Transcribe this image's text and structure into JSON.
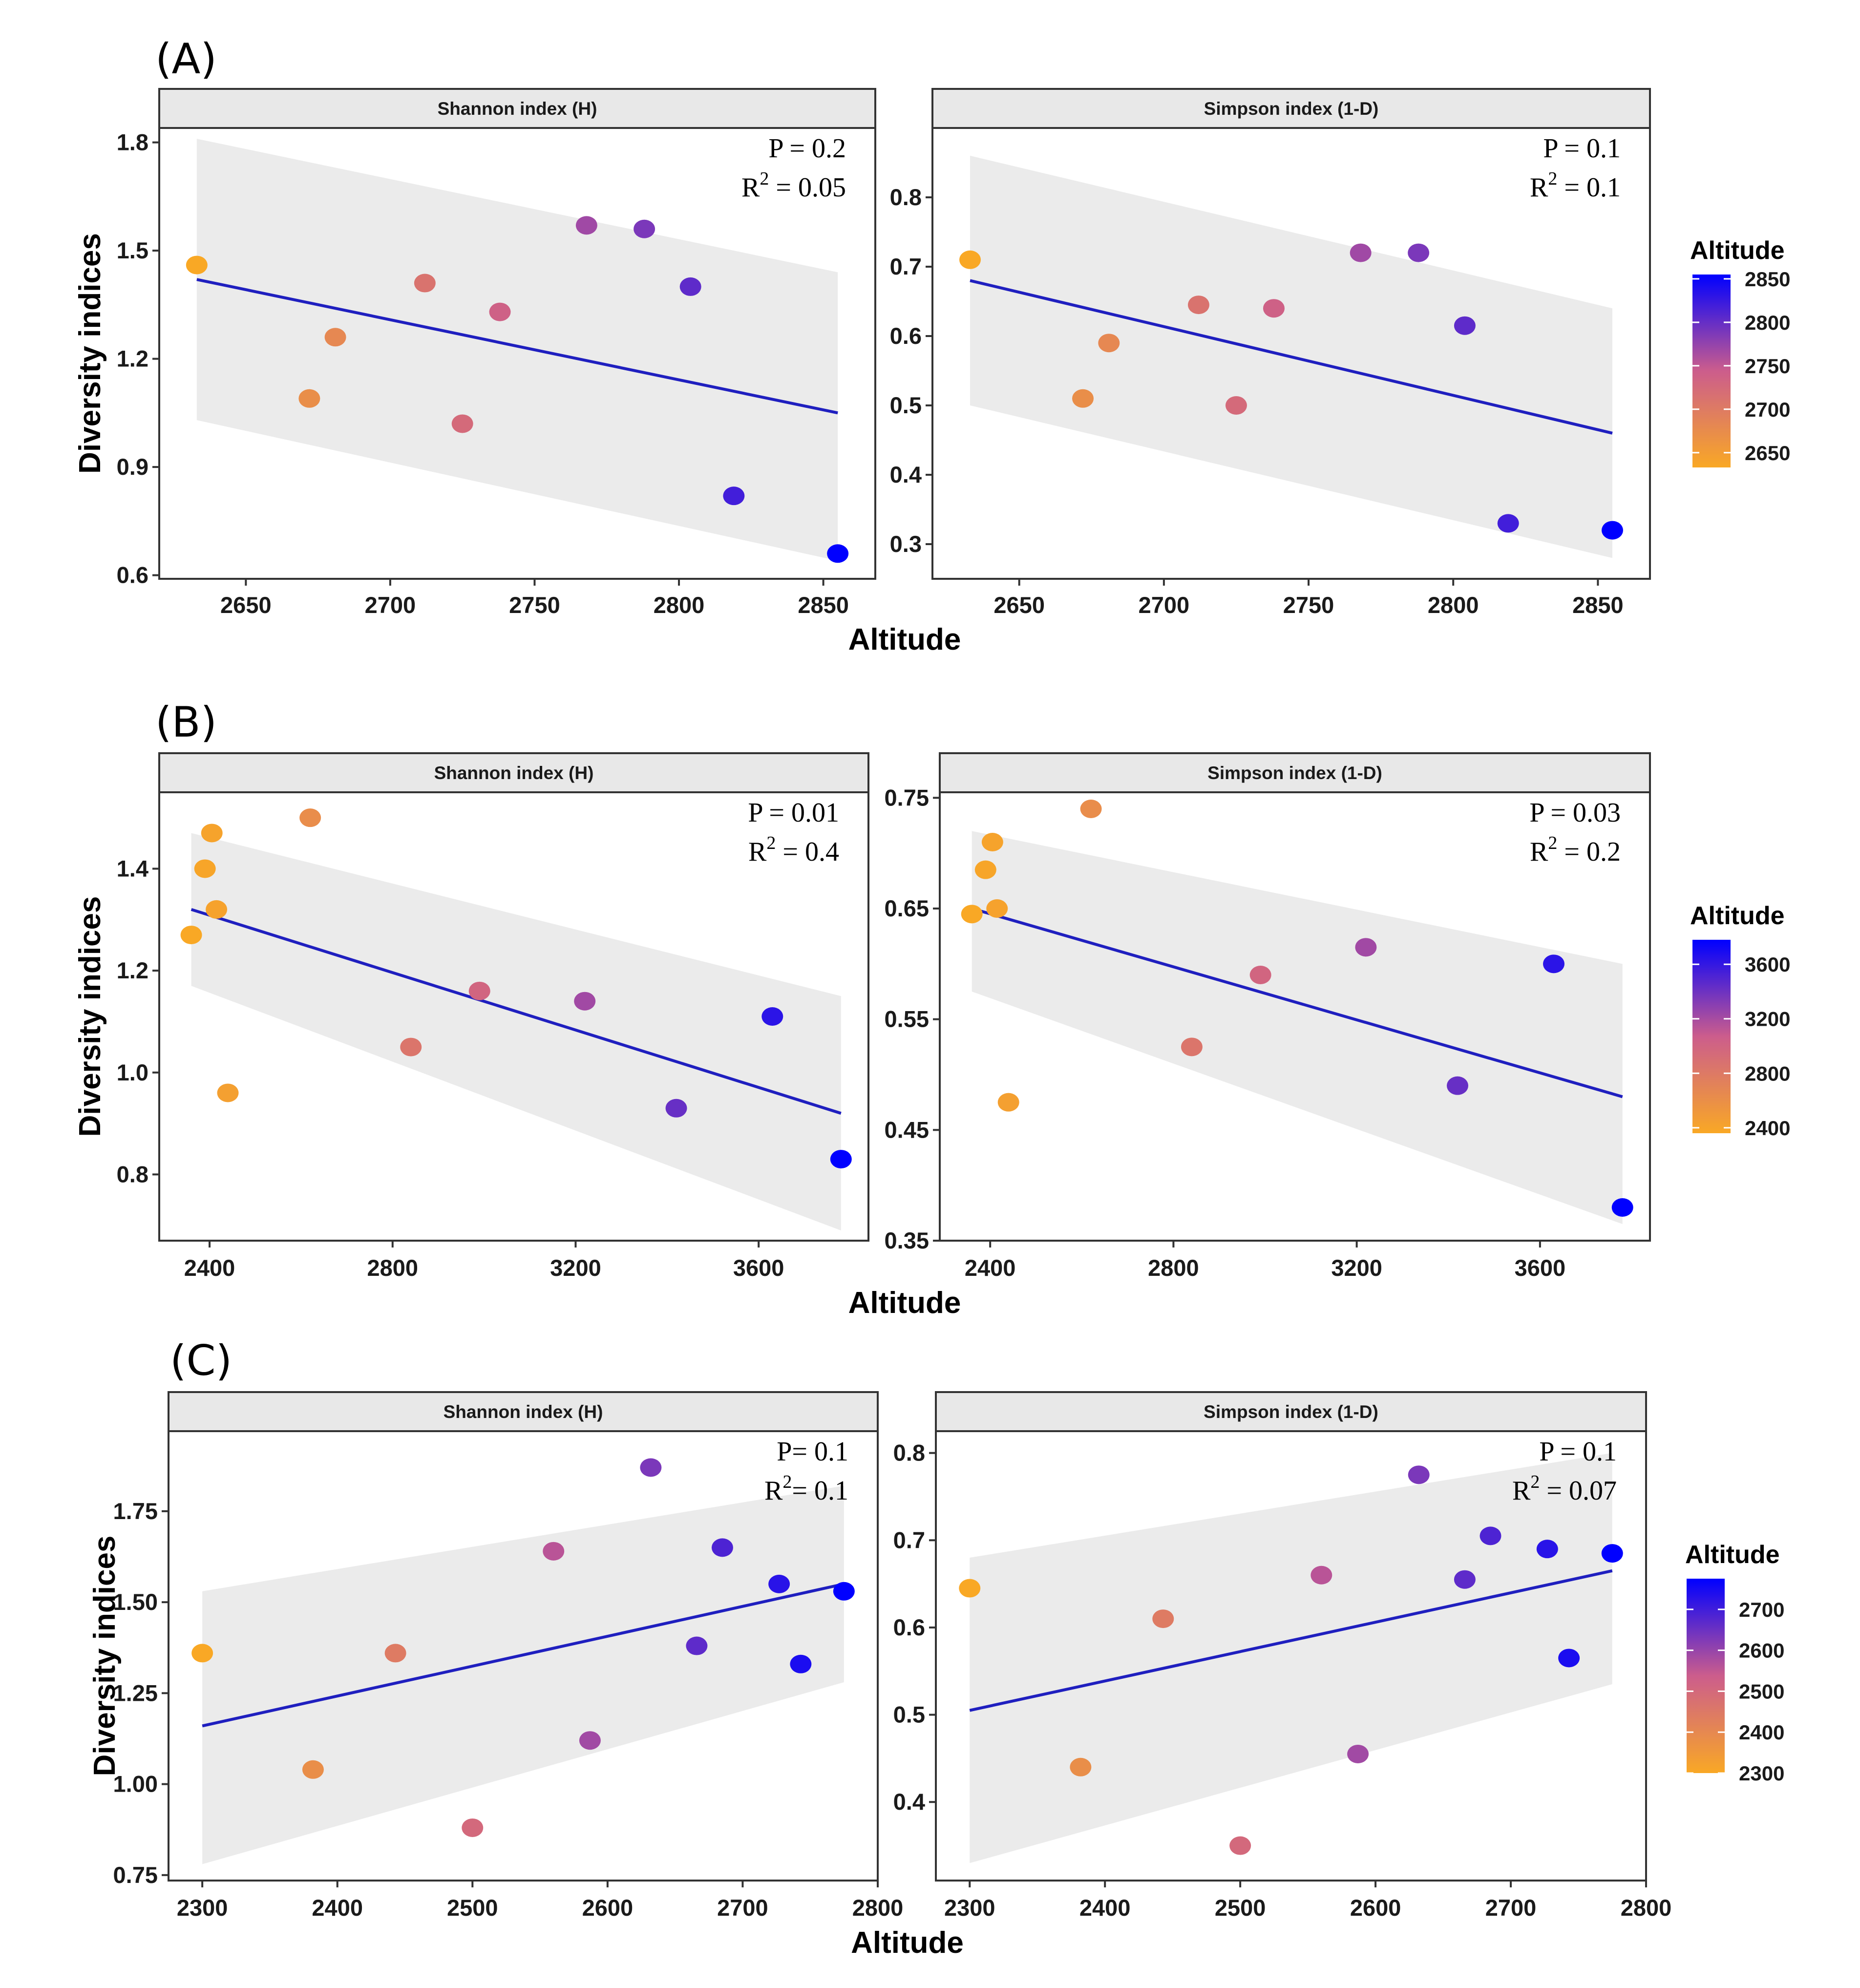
{
  "figure": {
    "xlabel": "Altitude",
    "ylabel": "Diversity indices"
  },
  "chart_data": [
    {
      "type": "scatter",
      "panel": "(A)",
      "legend": {
        "title": "Altitude",
        "range": [
          2633,
          2855
        ],
        "ticks": [
          "2650",
          "2700",
          "2750",
          "2800",
          "2850"
        ]
      },
      "facets": [
        {
          "title": "Shannon index (H)",
          "xlim": [
            2620,
            2868
          ],
          "ylim": [
            0.59,
            1.84
          ],
          "xticks": [
            "2650",
            "2700",
            "2750",
            "2800",
            "2850"
          ],
          "yticks": [
            "0.6",
            "0.9",
            "1.2",
            "1.5",
            "1.8"
          ],
          "stat_p": "P = 0.2",
          "stat_r2_prefix": "R",
          "stat_r2_value": " = 0.05",
          "x": [
            2633,
            2672,
            2681,
            2712,
            2725,
            2738,
            2768,
            2788,
            2804,
            2819,
            2855
          ],
          "y": [
            1.46,
            1.09,
            1.26,
            1.41,
            1.02,
            1.33,
            1.57,
            1.56,
            1.4,
            0.82,
            0.66
          ],
          "fit": {
            "x": [
              2633,
              2855
            ],
            "y": [
              1.42,
              1.05
            ]
          },
          "ci_upper": [
            1.81,
            1.44
          ],
          "ci_lower": [
            1.03,
            0.64
          ]
        },
        {
          "title": "Simpson index (1-D)",
          "xlim": [
            2620,
            2868
          ],
          "ylim": [
            0.25,
            0.9
          ],
          "xticks": [
            "2650",
            "2700",
            "2750",
            "2800",
            "2850"
          ],
          "yticks": [
            "0.3",
            "0.4",
            "0.5",
            "0.6",
            "0.7",
            "0.8"
          ],
          "stat_p": "P = 0.1",
          "stat_r2_prefix": "R",
          "stat_r2_value": " = 0.1",
          "x": [
            2633,
            2672,
            2681,
            2712,
            2725,
            2738,
            2768,
            2788,
            2804,
            2819,
            2855
          ],
          "y": [
            0.71,
            0.51,
            0.59,
            0.645,
            0.5,
            0.64,
            0.72,
            0.72,
            0.615,
            0.33,
            0.32
          ],
          "fit": {
            "x": [
              2633,
              2855
            ],
            "y": [
              0.68,
              0.46
            ]
          },
          "ci_upper": [
            0.86,
            0.64
          ],
          "ci_lower": [
            0.5,
            0.28
          ]
        }
      ]
    },
    {
      "type": "scatter",
      "panel": "(B)",
      "legend": {
        "title": "Altitude",
        "range": [
          2360,
          3780
        ],
        "ticks": [
          "2400",
          "2800",
          "3200",
          "3600"
        ]
      },
      "facets": [
        {
          "title": "Shannon index (H)",
          "xlim": [
            2290,
            3840
          ],
          "ylim": [
            0.67,
            1.55
          ],
          "xticks": [
            "2400",
            "2800",
            "3200",
            "3600"
          ],
          "yticks": [
            "0.8",
            "1.0",
            "1.2",
            "1.4"
          ],
          "stat_p": "P = 0.01",
          "stat_r2_prefix": "R",
          "stat_r2_value": " = 0.4",
          "x": [
            2360,
            2390,
            2405,
            2415,
            2440,
            2620,
            2840,
            2990,
            3220,
            3420,
            3630,
            3780
          ],
          "y": [
            1.27,
            1.4,
            1.47,
            1.32,
            0.96,
            1.5,
            1.05,
            1.16,
            1.14,
            0.93,
            1.11,
            0.83
          ],
          "fit": {
            "x": [
              2360,
              3780
            ],
            "y": [
              1.32,
              0.92
            ]
          },
          "ci_upper": [
            1.47,
            1.15
          ],
          "ci_lower": [
            1.17,
            0.69
          ]
        },
        {
          "title": "Simpson index (1-D)",
          "xlim": [
            2290,
            3840
          ],
          "ylim": [
            0.35,
            0.755
          ],
          "xticks": [
            "2400",
            "2800",
            "3200",
            "3600"
          ],
          "yticks": [
            "0.35",
            "0.45",
            "0.55",
            "0.65",
            "0.75"
          ],
          "stat_p": "P = 0.03",
          "stat_r2_prefix": "R",
          "stat_r2_value": " = 0.2",
          "x": [
            2360,
            2390,
            2405,
            2415,
            2440,
            2620,
            2840,
            2990,
            3220,
            3420,
            3630,
            3780
          ],
          "y": [
            0.645,
            0.685,
            0.71,
            0.65,
            0.475,
            0.74,
            0.525,
            0.59,
            0.615,
            0.49,
            0.6,
            0.38
          ],
          "fit": {
            "x": [
              2360,
              3780
            ],
            "y": [
              0.65,
              0.48
            ]
          },
          "ci_upper": [
            0.72,
            0.6
          ],
          "ci_lower": [
            0.575,
            0.365
          ]
        }
      ]
    },
    {
      "type": "scatter",
      "panel": "(C)",
      "legend": {
        "title": "Altitude",
        "range": [
          2300,
          2775
        ],
        "ticks": [
          "2300",
          "2400",
          "2500",
          "2600",
          "2700"
        ]
      },
      "facets": [
        {
          "title": "Shannon index (H)",
          "xlim": [
            2275,
            2800
          ],
          "ylim": [
            0.735,
            1.97
          ],
          "xticks": [
            "2300",
            "2400",
            "2500",
            "2600",
            "2700",
            "2800"
          ],
          "yticks": [
            "0.75",
            "1.00",
            "1.25",
            "1.50",
            "1.75"
          ],
          "stat_p": "P= 0.1",
          "stat_r2_prefix": "R",
          "stat_r2_value": "= 0.1",
          "x": [
            2300,
            2382,
            2443,
            2500,
            2560,
            2587,
            2632,
            2666,
            2685,
            2727,
            2743,
            2775
          ],
          "y": [
            1.36,
            1.04,
            1.36,
            0.88,
            1.64,
            1.12,
            1.87,
            1.38,
            1.65,
            1.55,
            1.33,
            1.53
          ],
          "fit": {
            "x": [
              2300,
              2775
            ],
            "y": [
              1.16,
              1.55
            ]
          },
          "ci_upper": [
            1.53,
            1.82
          ],
          "ci_lower": [
            0.78,
            1.28
          ]
        },
        {
          "title": "Simpson index (1-D)",
          "xlim": [
            2275,
            2800
          ],
          "ylim": [
            0.31,
            0.825
          ],
          "xticks": [
            "2300",
            "2400",
            "2500",
            "2600",
            "2700",
            "2800"
          ],
          "yticks": [
            "0.4",
            "0.5",
            "0.6",
            "0.7",
            "0.8"
          ],
          "stat_p": "P = 0.1",
          "stat_r2_prefix": "R",
          "stat_r2_value": " = 0.07",
          "x": [
            2300,
            2382,
            2443,
            2500,
            2560,
            2587,
            2632,
            2666,
            2685,
            2727,
            2743,
            2775
          ],
          "y": [
            0.645,
            0.44,
            0.61,
            0.35,
            0.66,
            0.455,
            0.775,
            0.655,
            0.705,
            0.69,
            0.565,
            0.685
          ],
          "fit": {
            "x": [
              2300,
              2775
            ],
            "y": [
              0.505,
              0.665
            ]
          },
          "ci_upper": [
            0.68,
            0.8
          ],
          "ci_lower": [
            0.33,
            0.535
          ]
        }
      ]
    }
  ],
  "colors": {
    "low": "#f9a825",
    "mid": "#cc5d8c",
    "high": "#0000ff",
    "fit": "#1f1fbf",
    "ci": "#ebebeb",
    "strip": "#e8e8e8",
    "frame": "#333333"
  }
}
